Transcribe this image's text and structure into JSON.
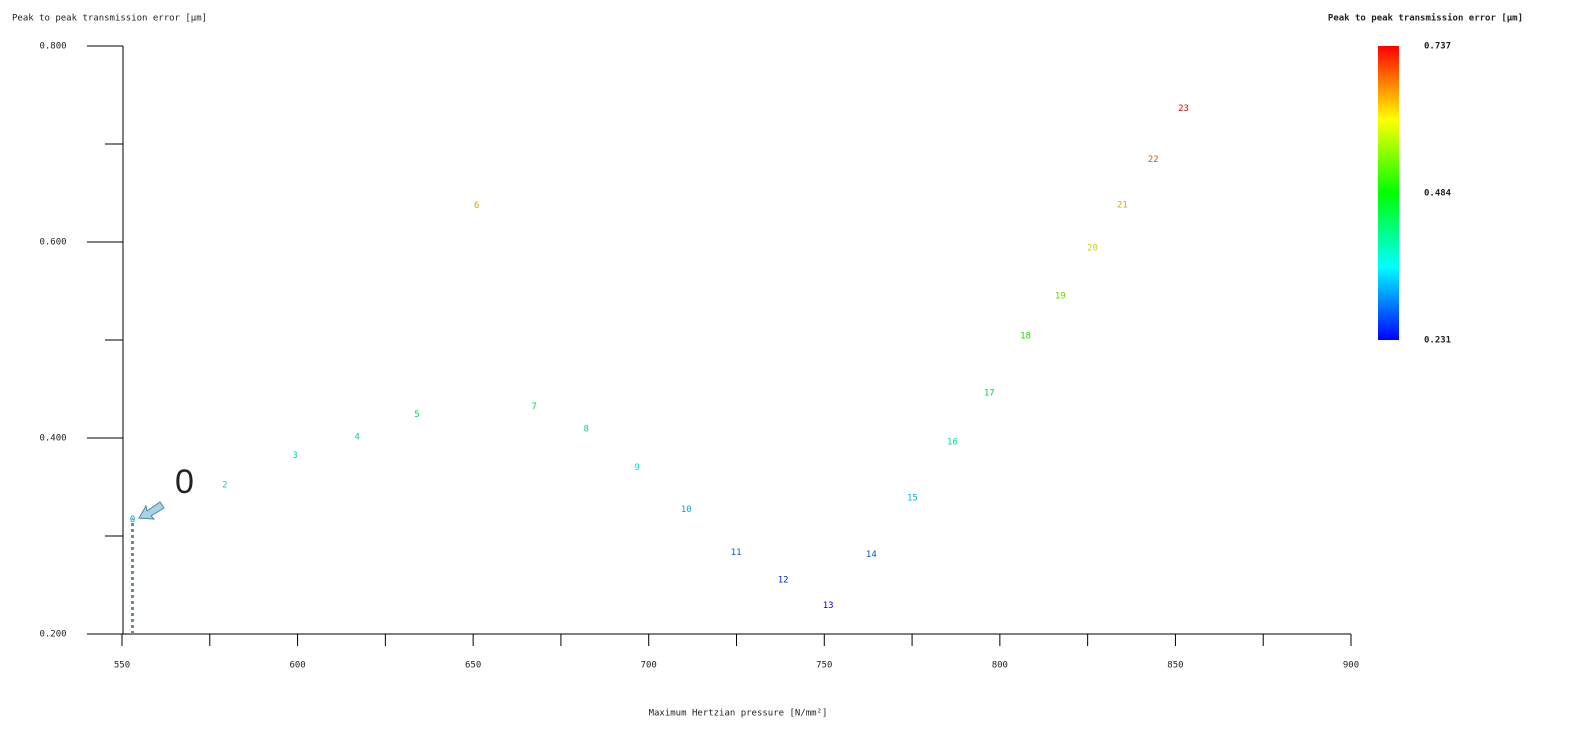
{
  "chart_data": {
    "type": "scatter",
    "y_label": "Peak to peak transmission error [μm]",
    "x_label": "Maximum Hertzian pressure [N/mm²]",
    "colorbar_title": "Peak to peak transmission error [μm]",
    "annotation": "0",
    "point_labels": [
      "0",
      "2",
      "3",
      "4",
      "5",
      "6",
      "7",
      "8",
      "9",
      "10",
      "11",
      "12",
      "13",
      "14",
      "15",
      "16",
      "17",
      "18",
      "19",
      "20",
      "21",
      "22",
      "23"
    ],
    "x": [
      553,
      579.3,
      599.3,
      617,
      634,
      651,
      667.4,
      682.2,
      696.7,
      710.7,
      724.9,
      738.3,
      751.1,
      763.4,
      775.1,
      786.5,
      797,
      807.3,
      817.2,
      826.4,
      834.9,
      843.7,
      852.3
    ],
    "y": [
      0.317,
      0.352,
      0.382,
      0.401,
      0.424,
      0.637,
      0.432,
      0.409,
      0.37,
      0.327,
      0.283,
      0.255,
      0.229,
      0.281,
      0.339,
      0.396,
      0.446,
      0.504,
      0.545,
      0.594,
      0.638,
      0.684,
      0.736
    ],
    "xlim": [
      550,
      900
    ],
    "xticks": [
      550,
      600,
      650,
      700,
      750,
      800,
      850,
      900
    ],
    "xminorticks": [
      575,
      625,
      675,
      725,
      775,
      825,
      875
    ],
    "ylim": [
      0.2,
      0.8
    ],
    "yticks": [
      {
        "value": 0.2,
        "label": "0.200"
      },
      {
        "value": 0.4,
        "label": "0.400"
      },
      {
        "value": 0.6,
        "label": "0.600"
      },
      {
        "value": 0.8,
        "label": "0.800"
      }
    ],
    "yminorticks": [
      0.3,
      0.5,
      0.7
    ],
    "clim": [
      0.231,
      0.737
    ],
    "cticks": [
      0.231,
      0.484,
      0.737
    ],
    "colormap": [
      "#0000ff",
      "#00ffff",
      "#00ff00",
      "#ffff00",
      "#ff0000"
    ]
  }
}
